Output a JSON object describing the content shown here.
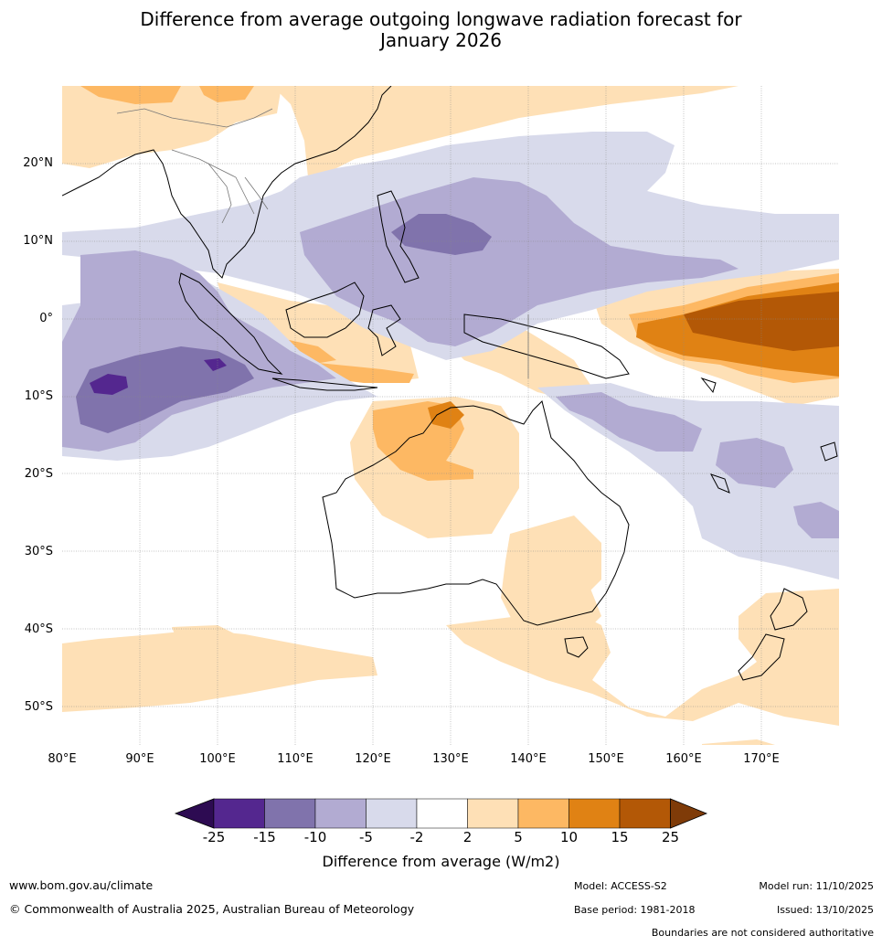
{
  "title_line1": "Difference from average outgoing longwave radiation forecast for",
  "title_line2": "January 2026",
  "map": {
    "lon_range": [
      80,
      180
    ],
    "lat_range": [
      -55,
      30
    ],
    "lat_labels": [
      "20°N",
      "10°N",
      "0°",
      "10°S",
      "20°S",
      "30°S",
      "40°S",
      "50°S"
    ],
    "lon_labels": [
      "80°E",
      "90°E",
      "100°E",
      "110°E",
      "120°E",
      "130°E",
      "140°E",
      "150°E",
      "160°E",
      "170°E"
    ]
  },
  "colorbar": {
    "ticks": [
      "-25",
      "-15",
      "-10",
      "-5",
      "-2",
      "2",
      "5",
      "10",
      "15",
      "25"
    ],
    "colors": {
      "below": "#2d0b52",
      "n25_15": "#54278f",
      "n15_10": "#8073ac",
      "n10_5": "#b2abd2",
      "n5_2": "#d8daeb",
      "n2_2": "#ffffff",
      "p2_5": "#fee0b6",
      "p5_10": "#fdb863",
      "p10_15": "#e08214",
      "p15_25": "#b35806",
      "above": "#7f3b08"
    },
    "label": "Difference from average (W/m2)"
  },
  "footer": {
    "website": "www.bom.gov.au/climate",
    "copyright": "© Commonwealth of Australia 2025, Australian Bureau of Meteorology",
    "model": "Model: ACCESS-S2",
    "base_period": "Base period: 1981-2018",
    "model_run": "Model run: 11/10/2025",
    "issued": "Issued: 13/10/2025",
    "disclaimer": "Boundaries are not considered authoritative"
  }
}
